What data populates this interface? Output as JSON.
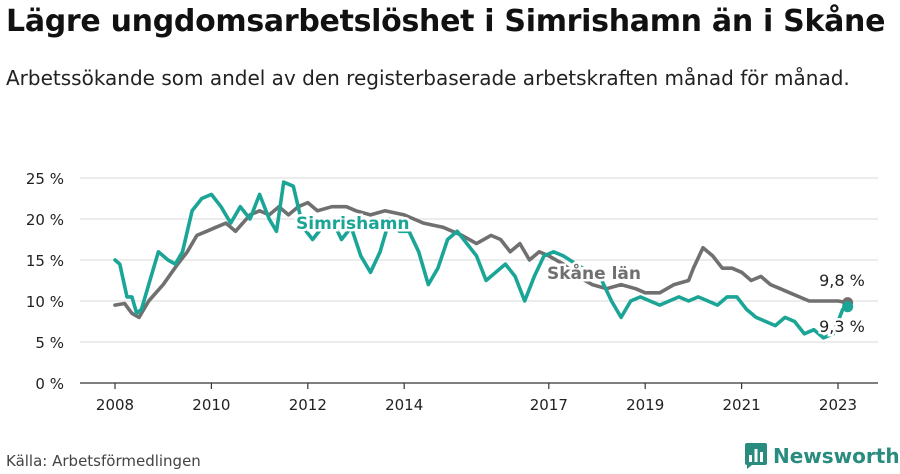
{
  "title": "Lägre ungdomsarbetslöshet i Simrishamn än i Skåne",
  "subtitle": "Arbetssökande som andel av den registerbaserade arbetskraften månad för månad.",
  "source": "Källa: Arbetsförmedlingen",
  "brand": "Newsworthy",
  "colors": {
    "simrishamn": "#1aa596",
    "skane": "#707070",
    "grid": "#d9d9d9",
    "axis": "#333333",
    "brand": "#2a8c7e"
  },
  "chart_data": {
    "type": "line",
    "title": "Lägre ungdomsarbetslöshet i Simrishamn än i Skåne",
    "xlabel": "",
    "ylabel": "",
    "xlim": [
      2008,
      2023.5
    ],
    "ylim": [
      0,
      25
    ],
    "y_ticks": [
      0,
      5,
      10,
      15,
      20,
      25
    ],
    "y_tick_labels": [
      "0 %",
      "5 %",
      "10 %",
      "15 %",
      "20 %",
      "25 %"
    ],
    "x_ticks": [
      2008,
      2010,
      2012,
      2014,
      2017,
      2019,
      2021,
      2023
    ],
    "x_tick_labels": [
      "2008",
      "2010",
      "2012",
      "2014",
      "2017",
      "2019",
      "2021",
      "2023"
    ],
    "grid": true,
    "series": [
      {
        "name": "Skåne län",
        "color": "#707070",
        "x": [
          2008.0,
          2008.2,
          2008.35,
          2008.5,
          2008.7,
          2009.0,
          2009.3,
          2009.5,
          2009.7,
          2009.9,
          2010.1,
          2010.3,
          2010.5,
          2010.8,
          2011.0,
          2011.2,
          2011.4,
          2011.6,
          2011.8,
          2012.0,
          2012.2,
          2012.5,
          2012.8,
          2013.0,
          2013.3,
          2013.6,
          2014.0,
          2014.4,
          2014.8,
          2015.2,
          2015.5,
          2015.8,
          2016.0,
          2016.2,
          2016.4,
          2016.6,
          2016.8,
          2017.0,
          2017.3,
          2017.6,
          2017.9,
          2018.2,
          2018.5,
          2018.8,
          2019.0,
          2019.3,
          2019.6,
          2019.9,
          2020.0,
          2020.2,
          2020.4,
          2020.6,
          2020.8,
          2021.0,
          2021.2,
          2021.4,
          2021.6,
          2021.8,
          2022.0,
          2022.2,
          2022.4,
          2022.6,
          2022.8,
          2023.0,
          2023.2
        ],
        "values": [
          9.5,
          9.7,
          8.5,
          8.0,
          10.0,
          12.0,
          14.5,
          16.0,
          18.0,
          18.5,
          19.0,
          19.5,
          18.5,
          20.5,
          21.0,
          20.5,
          21.5,
          20.5,
          21.5,
          22.0,
          21.0,
          21.5,
          21.5,
          21.0,
          20.5,
          21.0,
          20.5,
          19.5,
          19.0,
          18.0,
          17.0,
          18.0,
          17.5,
          16.0,
          17.0,
          15.0,
          16.0,
          15.5,
          14.5,
          13.0,
          12.0,
          11.5,
          12.0,
          11.5,
          11.0,
          11.0,
          12.0,
          12.5,
          14.0,
          16.5,
          15.5,
          14.0,
          14.0,
          13.5,
          12.5,
          13.0,
          12.0,
          11.5,
          11.0,
          10.5,
          10.0,
          10.0,
          10.0,
          10.0,
          9.8
        ]
      },
      {
        "name": "Simrishamn",
        "color": "#1aa596",
        "x": [
          2008.0,
          2008.1,
          2008.25,
          2008.35,
          2008.45,
          2008.55,
          2008.7,
          2008.9,
          2009.1,
          2009.25,
          2009.4,
          2009.6,
          2009.8,
          2010.0,
          2010.2,
          2010.4,
          2010.6,
          2010.8,
          2011.0,
          2011.2,
          2011.35,
          2011.5,
          2011.7,
          2011.9,
          2012.1,
          2012.3,
          2012.5,
          2012.7,
          2012.9,
          2013.1,
          2013.3,
          2013.5,
          2013.7,
          2013.9,
          2014.1,
          2014.3,
          2014.5,
          2014.7,
          2014.9,
          2015.1,
          2015.3,
          2015.5,
          2015.7,
          2015.9,
          2016.1,
          2016.3,
          2016.5,
          2016.7,
          2016.9,
          2017.1,
          2017.3,
          2018.1,
          2018.3,
          2018.5,
          2018.7,
          2018.9,
          2019.1,
          2019.3,
          2019.5,
          2019.7,
          2019.9,
          2020.1,
          2020.3,
          2020.5,
          2020.7,
          2020.9,
          2021.1,
          2021.3,
          2021.5,
          2021.7,
          2021.9,
          2022.1,
          2022.3,
          2022.5,
          2022.7,
          2022.9,
          2023.1,
          2023.2
        ],
        "values": [
          15.0,
          14.5,
          10.5,
          10.5,
          8.5,
          9.0,
          12.0,
          16.0,
          15.0,
          14.5,
          16.0,
          21.0,
          22.5,
          23.0,
          21.5,
          19.5,
          21.5,
          20.0,
          23.0,
          20.0,
          18.5,
          24.5,
          24.0,
          19.0,
          17.5,
          19.0,
          20.0,
          17.5,
          19.0,
          15.5,
          13.5,
          16.0,
          20.0,
          18.5,
          18.5,
          16.0,
          12.0,
          14.0,
          17.5,
          18.5,
          17.0,
          15.5,
          12.5,
          13.5,
          14.5,
          13.0,
          10.0,
          13.0,
          15.5,
          16.0,
          15.5,
          12.5,
          10.0,
          8.0,
          10.0,
          10.5,
          10.0,
          9.5,
          10.0,
          10.5,
          10.0,
          10.5,
          10.0,
          9.5,
          10.5,
          10.5,
          9.0,
          8.0,
          7.5,
          7.0,
          8.0,
          7.5,
          6.0,
          6.5,
          5.5,
          6.0,
          9.0,
          9.3
        ]
      }
    ],
    "annotations": [
      {
        "series": "Simrishamn",
        "label": "Simrishamn"
      },
      {
        "series": "Skåne län",
        "label": "Skåne län"
      },
      {
        "series": "Skåne län",
        "label": "9,8 %"
      },
      {
        "series": "Simrishamn",
        "label": "9,3 %"
      }
    ]
  }
}
